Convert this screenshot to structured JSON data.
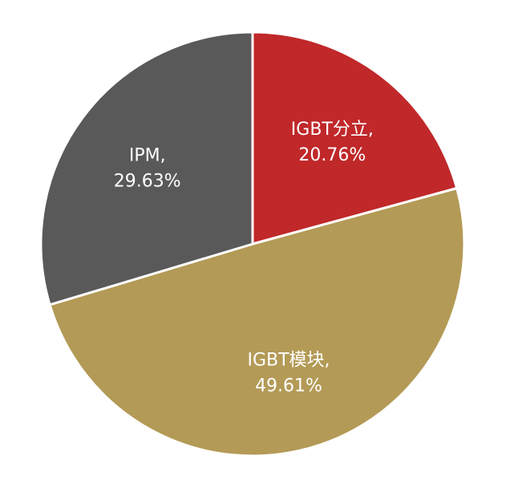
{
  "chart_data": {
    "type": "pie",
    "title": "",
    "slices": [
      {
        "name": "IGBT分立",
        "value": 20.76,
        "label_line1": "IGBT分立,",
        "label_line2": "20.76%",
        "color": "#c0282a"
      },
      {
        "name": "IGBT模块",
        "value": 49.61,
        "label_line1": "IGBT模块,",
        "label_line2": "49.61%",
        "color": "#b39a56"
      },
      {
        "name": "IPM",
        "value": 29.63,
        "label_line1": "IPM,",
        "label_line2": "29.63%",
        "color": "#595959"
      }
    ],
    "start_angle_deg": 0,
    "direction": "clockwise",
    "legend": "none",
    "slice_border_color": "#ffffff"
  }
}
